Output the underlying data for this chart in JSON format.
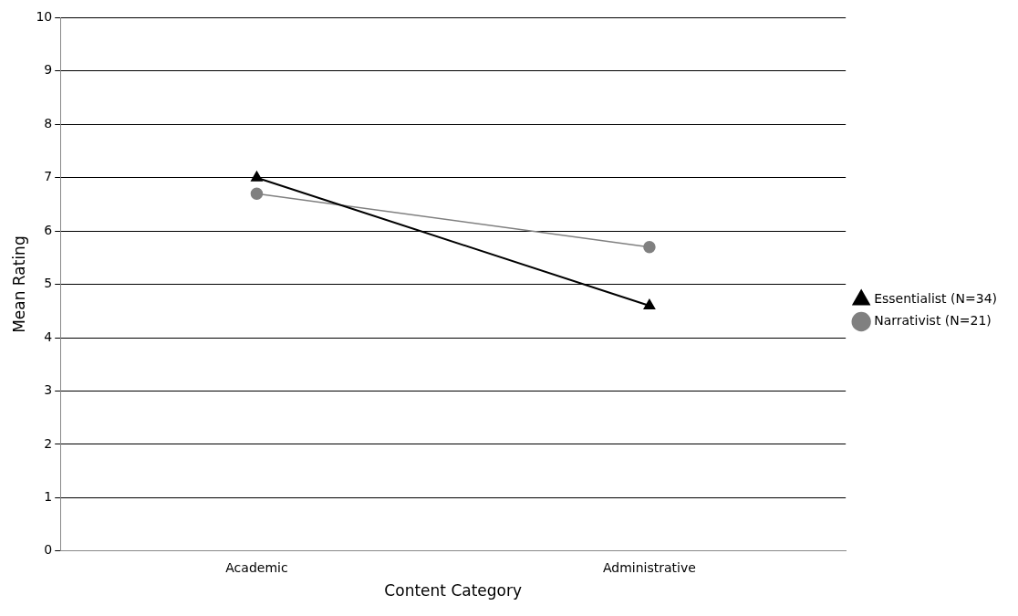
{
  "chart_data": {
    "type": "line",
    "xlabel": "Content Category",
    "ylabel": "Mean Rating",
    "categories": [
      "Academic",
      "Administrative"
    ],
    "series": [
      {
        "name": "Essentialist (N=34)",
        "color": "#000000",
        "values": [
          7.0,
          4.6
        ],
        "marker": "triangle"
      },
      {
        "name": "Narrativist (N=21)",
        "color": "#808080",
        "values": [
          6.7,
          5.7
        ],
        "marker": "circle"
      }
    ],
    "ylim": [
      0,
      10
    ],
    "yticks": [
      0,
      1,
      2,
      3,
      4,
      5,
      6,
      7,
      8,
      9,
      10
    ],
    "grid": "y",
    "legend": "right",
    "line_style": "solid"
  }
}
